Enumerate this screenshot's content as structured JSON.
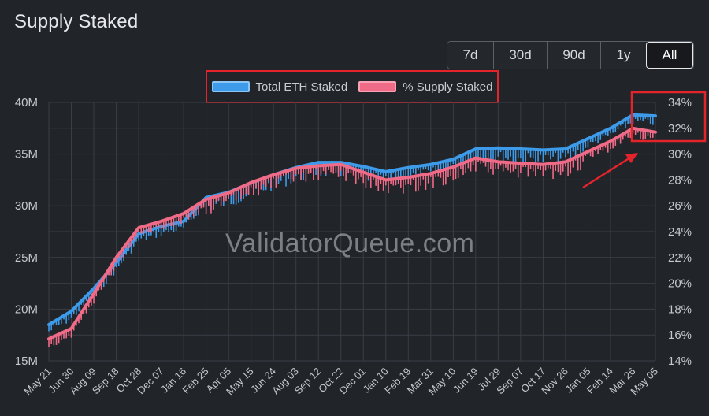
{
  "page": {
    "title": "Supply Staked",
    "watermark": "ValidatorQueue.com"
  },
  "range_buttons": [
    {
      "label": "7d",
      "active": false
    },
    {
      "label": "30d",
      "active": false
    },
    {
      "label": "90d",
      "active": false
    },
    {
      "label": "1y",
      "active": false
    },
    {
      "label": "All",
      "active": true
    }
  ],
  "colors": {
    "background": "#212429",
    "total_eth": "#3d9be9",
    "pct_supply": "#f06b87",
    "grid": "#3a3e45",
    "annotation": "#e3242b"
  },
  "chart_data": {
    "type": "line",
    "title": "",
    "xlabel": "",
    "ylabel": "",
    "legend_position": "top-center",
    "grid": true,
    "x_ticks": [
      "May 21",
      "Jun 30",
      "Aug 09",
      "Sep 18",
      "Oct 28",
      "Dec 07",
      "Jan 16",
      "Feb 25",
      "Apr 05",
      "May 15",
      "Jun 24",
      "Aug 03",
      "Sep 12",
      "Oct 22",
      "Dec 01",
      "Jan 10",
      "Feb 19",
      "Mar 31",
      "May 10",
      "Jun 19",
      "Jul 29",
      "Sep 07",
      "Oct 17",
      "Nov 26",
      "Jan 05",
      "Feb 14",
      "Mar 26",
      "May 05"
    ],
    "y_left": {
      "ticks": [
        "15M",
        "20M",
        "25M",
        "30M",
        "35M",
        "40M"
      ],
      "range": [
        15,
        40
      ],
      "unit": "M"
    },
    "y_right": {
      "ticks": [
        "14%",
        "16%",
        "18%",
        "20%",
        "22%",
        "24%",
        "26%",
        "28%",
        "30%",
        "32%",
        "34%"
      ],
      "range": [
        14,
        34
      ],
      "unit": "%"
    },
    "series": [
      {
        "name": "Total ETH Staked",
        "axis": "left",
        "values": [
          18.5,
          19.8,
          22.0,
          24.5,
          27.3,
          28.0,
          28.5,
          30.8,
          31.3,
          32.2,
          33.0,
          33.7,
          34.2,
          34.2,
          33.8,
          33.3,
          33.7,
          34.0,
          34.5,
          35.5,
          35.6,
          35.5,
          35.4,
          35.5,
          36.5,
          37.5,
          38.8,
          38.7
        ]
      },
      {
        "name": "% Supply Staked",
        "axis": "right",
        "values": [
          15.7,
          16.5,
          19.2,
          22.0,
          24.3,
          24.8,
          25.4,
          26.5,
          27.0,
          27.8,
          28.4,
          28.9,
          29.1,
          29.2,
          28.6,
          28.0,
          28.2,
          28.5,
          29.0,
          29.7,
          29.4,
          29.3,
          29.2,
          29.4,
          30.2,
          31.0,
          32.0,
          31.7
        ]
      }
    ],
    "annotations": [
      "highlighted latest values (red box)",
      "red arrow pointing to recent increase"
    ]
  }
}
